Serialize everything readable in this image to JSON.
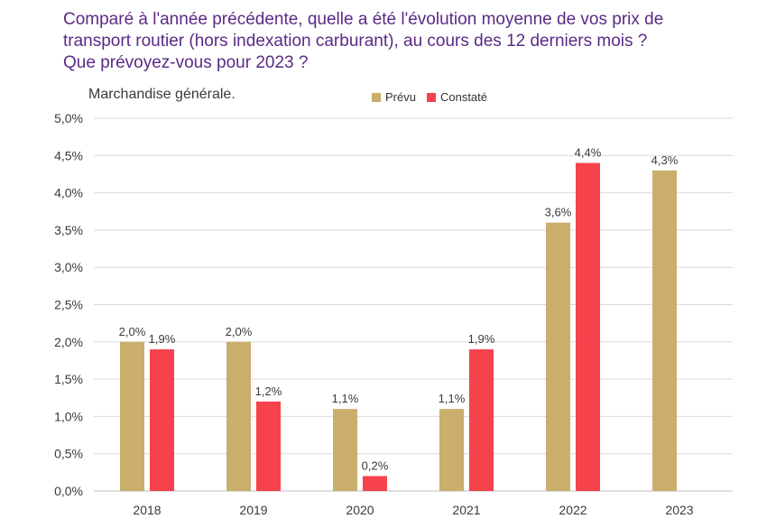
{
  "title_lines": [
    "Comparé à l'année précédente, quelle a été l'évolution moyenne de vos prix de",
    "transport routier (hors indexation carburant), au cours des 12 derniers mois ?",
    "Que prévoyez-vous pour 2023 ?"
  ],
  "colors": {
    "title": "#5b2a86",
    "prevu": "#c9ae6c",
    "constate": "#f5424b",
    "grid": "#d9d9d9",
    "text": "#3a3a3a"
  },
  "chart_data": {
    "type": "bar",
    "title": "",
    "subtitle": "Marchandise générale.",
    "categories": [
      "2018",
      "2019",
      "2020",
      "2021",
      "2022",
      "2023"
    ],
    "series": [
      {
        "name": "Prévu",
        "values": [
          2.0,
          2.0,
          1.1,
          1.1,
          3.6,
          4.3
        ],
        "labels": [
          "2,0%",
          "2,0%",
          "1,1%",
          "1,1%",
          "3,6%",
          "4,3%"
        ],
        "color": "#c9ae6c"
      },
      {
        "name": "Constaté",
        "values": [
          1.9,
          1.2,
          0.2,
          1.9,
          4.4,
          null
        ],
        "labels": [
          "1,9%",
          "1,2%",
          "0,2%",
          "1,9%",
          "4,4%",
          null
        ],
        "color": "#f5424b"
      }
    ],
    "ylim": [
      0,
      5
    ],
    "yticks": [
      "0,0%",
      "0,5%",
      "1,0%",
      "1,5%",
      "2,0%",
      "2,5%",
      "3,0%",
      "3,5%",
      "4,0%",
      "4,5%",
      "5,0%"
    ],
    "grid": true,
    "legend": "top-center"
  }
}
